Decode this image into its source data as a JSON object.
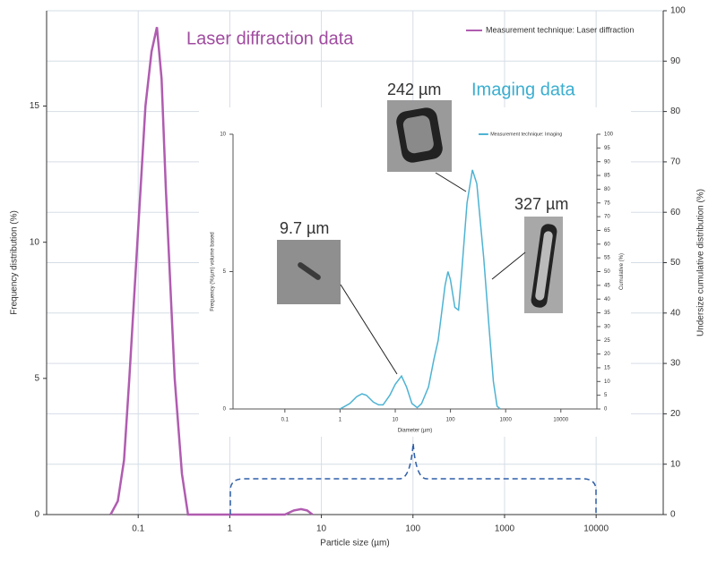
{
  "chart_data": [
    {
      "type": "line",
      "xlabel": "Particle size (µm)",
      "ylabel": "Frequency distribution (%)",
      "y2label": "Undersize cumulative distribution (%)",
      "annotations": [
        "Laser diffraction data"
      ],
      "xscale": "log",
      "xlim": [
        0.01,
        54000
      ],
      "xticks": [
        0.1,
        1,
        10,
        100,
        1000,
        10000
      ],
      "ylim": [
        0,
        18.5
      ],
      "yticks": [
        0,
        5,
        10,
        15
      ],
      "y2lim": [
        0,
        100
      ],
      "y2ticks": [
        0,
        10,
        20,
        30,
        40,
        50,
        60,
        70,
        80,
        90,
        100
      ],
      "grid": true,
      "legend": "upper right",
      "x": [
        0.05,
        0.06,
        0.07,
        0.08,
        0.1,
        0.12,
        0.14,
        0.16,
        0.18,
        0.2,
        0.25,
        0.3,
        0.35,
        4,
        5,
        6,
        7,
        8
      ],
      "series": [
        {
          "name": "Measurement technique: Laser diffraction",
          "color": "#b05cb0",
          "values": [
            0,
            0.5,
            2,
            5,
            10.5,
            15,
            17,
            17.9,
            16,
            12,
            5,
            1.5,
            0,
            0,
            0.15,
            0.2,
            0.15,
            0
          ]
        }
      ]
    },
    {
      "type": "line",
      "xlabel": "Diameter (µm)",
      "ylabel": "Frequency (%/µm) volume based",
      "y2label": "Cumulative (%)",
      "annotations": [
        "Imaging data",
        "242 µm",
        "9.7 µm",
        "327 µm"
      ],
      "xscale": "log",
      "xlim": [
        0.0115,
        45000
      ],
      "xticks": [
        0.1,
        1,
        10,
        100,
        1000,
        10000
      ],
      "ylim": [
        0,
        10
      ],
      "yticks": [
        0,
        5,
        10
      ],
      "y2lim": [
        0,
        100
      ],
      "y2ticks": [
        0,
        5,
        10,
        15,
        20,
        25,
        30,
        35,
        40,
        45,
        50,
        55,
        60,
        65,
        70,
        75,
        80,
        85,
        90,
        95,
        100
      ],
      "grid": false,
      "legend": "upper right",
      "x": [
        1,
        1.5,
        2,
        2.5,
        3,
        4,
        5,
        6,
        8,
        10,
        13,
        16,
        20,
        25,
        30,
        40,
        50,
        60,
        80,
        90,
        100,
        120,
        140,
        160,
        200,
        250,
        300,
        400,
        500,
        600,
        700,
        800
      ],
      "series": [
        {
          "name": "Measurement technique: Imaging",
          "color": "#4eb3d3",
          "values": [
            0,
            0.2,
            0.45,
            0.55,
            0.5,
            0.25,
            0.15,
            0.15,
            0.5,
            0.9,
            1.2,
            0.8,
            0.2,
            0.05,
            0.2,
            0.8,
            1.8,
            2.5,
            4.5,
            5.0,
            4.7,
            3.7,
            3.6,
            5.0,
            7.5,
            8.7,
            8.2,
            5.5,
            3.0,
            1.0,
            0.1,
            0
          ]
        }
      ]
    }
  ]
}
